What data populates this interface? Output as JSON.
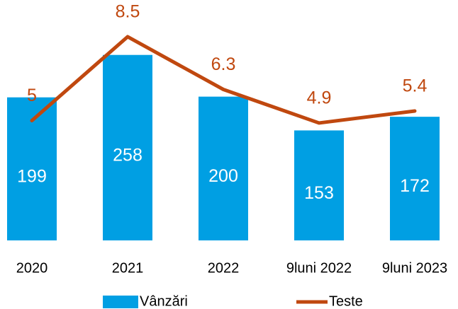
{
  "chart_data": {
    "type": "bar+line",
    "categories": [
      "2020",
      "2021",
      "2022",
      "9luni 2022",
      "9luni 2023"
    ],
    "series": [
      {
        "name": "Vânzări",
        "type": "bar",
        "color": "#009fe3",
        "values": [
          199,
          258,
          200,
          153,
          172
        ]
      },
      {
        "name": "Teste",
        "type": "line",
        "axis": "y2",
        "color": "#c0480f",
        "values": [
          5,
          8.5,
          6.3,
          4.9,
          5.4
        ]
      }
    ],
    "ylim": [
      0,
      300
    ],
    "y2lim": [
      0,
      9
    ],
    "legend": "bottom"
  }
}
